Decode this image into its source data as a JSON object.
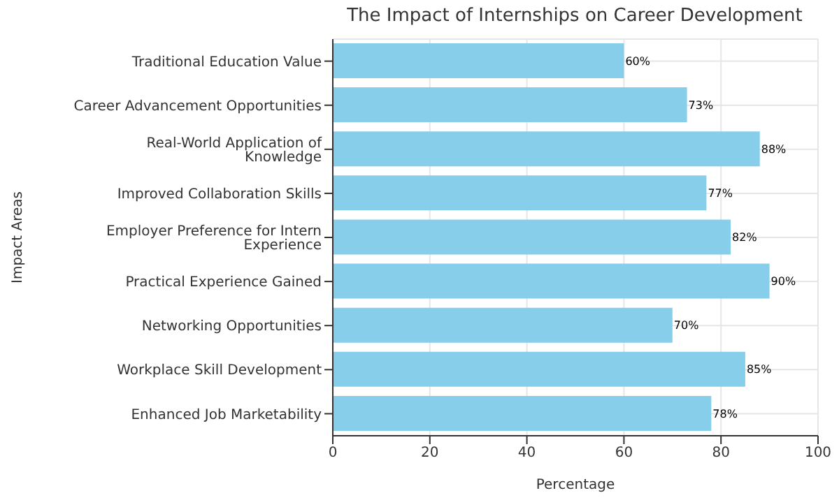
{
  "chart_data": {
    "type": "bar",
    "orientation": "horizontal",
    "title": "The Impact of Internships on Career Development",
    "xlabel": "Percentage",
    "ylabel": "Impact Areas",
    "categories": [
      "Traditional Education Value",
      "Career Advancement Opportunities",
      "Real-World Application of Knowledge",
      "Improved Collaboration Skills",
      "Employer Preference for Intern Experience",
      "Practical Experience Gained",
      "Networking Opportunities",
      "Workplace Skill Development",
      "Enhanced Job Marketability"
    ],
    "values": [
      60,
      73,
      88,
      77,
      82,
      90,
      70,
      85,
      78
    ],
    "value_labels": [
      "60%",
      "73%",
      "88%",
      "77%",
      "82%",
      "90%",
      "70%",
      "85%",
      "78%"
    ],
    "color": "#87ceeb",
    "xlim": [
      0,
      100
    ],
    "xticks": [
      0,
      20,
      40,
      60,
      80,
      100
    ],
    "grid": true
  }
}
